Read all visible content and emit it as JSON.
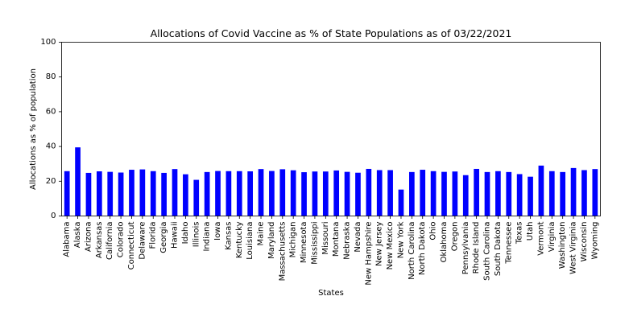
{
  "chart_data": {
    "type": "bar",
    "title": "Allocations of Covid Vaccine as % of State Populations as of 03/22/2021",
    "xlabel": "States",
    "ylabel": "Allocations as % of population",
    "ylim": [
      0,
      100
    ],
    "yticks": [
      0,
      20,
      40,
      60,
      80,
      100
    ],
    "grid": false,
    "bar_color": "#0000ff",
    "categories": [
      "Alabama",
      "Alaska",
      "Arizona",
      "Arkansas",
      "California",
      "Colorado",
      "Connecticut",
      "Delaware",
      "Florida",
      "Georgia",
      "Hawaii",
      "Idaho",
      "Illinois",
      "Indiana",
      "Iowa",
      "Kansas",
      "Kentucky",
      "Louisiana",
      "Maine",
      "Maryland",
      "Massachusetts",
      "Michigan",
      "Minnesota",
      "Mississippi",
      "Missouri",
      "Montana",
      "Nebraska",
      "Nevada",
      "New Hampshire",
      "New Jersey",
      "New Mexico",
      "New York",
      "North Carolina",
      "North Dakota",
      "Ohio",
      "Oklahoma",
      "Oregon",
      "Pennsylvania",
      "Rhode Island",
      "South Carolina",
      "South Dakota",
      "Tennessee",
      "Texas",
      "Utah",
      "Vermont",
      "Virginia",
      "Washington",
      "West Virginia",
      "Wisconsin",
      "Wyoming"
    ],
    "values": [
      25.8,
      39.5,
      24.8,
      25.7,
      25.4,
      25.0,
      26.6,
      26.8,
      25.8,
      24.8,
      27.0,
      24.0,
      20.8,
      25.3,
      25.9,
      25.8,
      25.8,
      25.7,
      27.0,
      25.9,
      26.9,
      26.3,
      25.2,
      25.6,
      25.6,
      26.2,
      25.4,
      24.9,
      27.1,
      26.4,
      26.4,
      15.2,
      25.3,
      26.6,
      25.8,
      25.4,
      25.6,
      23.5,
      27.1,
      25.3,
      25.8,
      25.3,
      24.1,
      22.6,
      29.0,
      25.8,
      25.3,
      27.6,
      26.4,
      27.0
    ]
  }
}
